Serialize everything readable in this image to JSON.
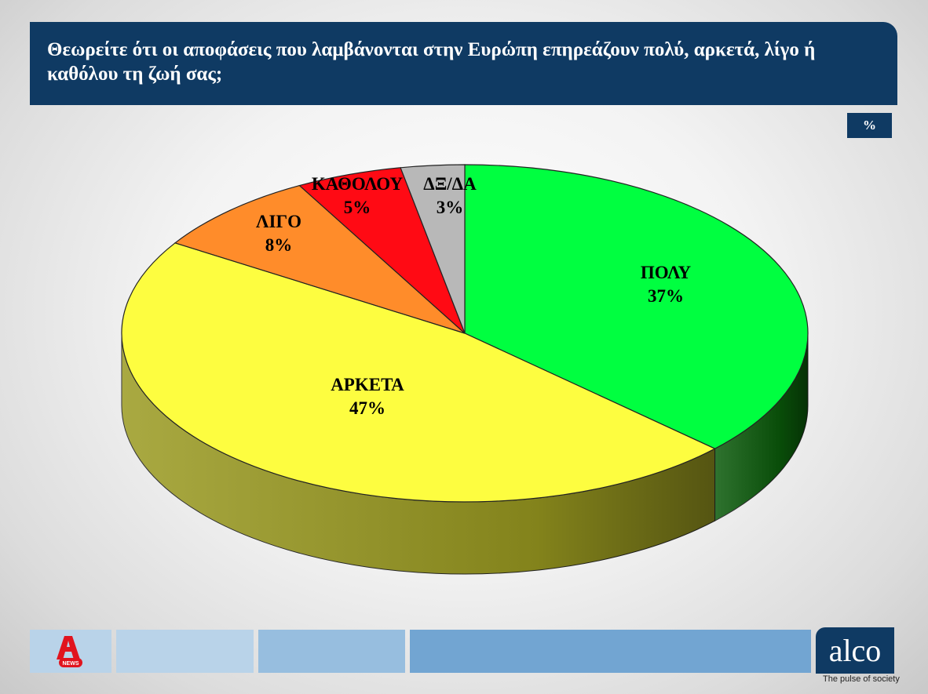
{
  "title": "Θεωρείτε ότι οι αποφάσεις που λαμβάνονται στην Ευρώπη επηρεάζουν πολύ, αρκετά, λίγο ή καθόλου τη ζωή σας;",
  "unit_badge": "%",
  "footer": {
    "brand": "alco",
    "tagline": "The pulse of society",
    "news_logo_icon": "alpha-news-logo-icon",
    "news_logo_text": "NEWS",
    "colors": [
      "#b9d3e9",
      "#97bedf",
      "#72a5d2"
    ]
  },
  "chart_data": {
    "type": "pie",
    "title": "Θεωρείτε ότι οι αποφάσεις που λαμβάνονται στην Ευρώπη επηρεάζουν πολύ, αρκετά, λίγο ή καθόλου τη ζωή σας;",
    "unit": "%",
    "style": "3d",
    "slices": [
      {
        "label": "ΠΟΛΥ",
        "value": 37,
        "display": "37%",
        "color": "#00ff40",
        "side_color": "#0a5a0a"
      },
      {
        "label": "ΑΡΚΕΤΑ",
        "value": 47,
        "display": "47%",
        "color": "#fdfd40",
        "side_color": "#9a9a20"
      },
      {
        "label": "ΛΙΓΟ",
        "value": 8,
        "display": "8%",
        "color": "#ff8c2a",
        "side_color": "#8a4a10"
      },
      {
        "label": "ΚΑΘΟΛΟΥ",
        "value": 5,
        "display": "5%",
        "color": "#ff0a14",
        "side_color": "#800008"
      },
      {
        "label": "ΔΞ/ΔΑ",
        "value": 3,
        "display": "3%",
        "color": "#b8b8b8",
        "side_color": "#606060"
      }
    ]
  }
}
